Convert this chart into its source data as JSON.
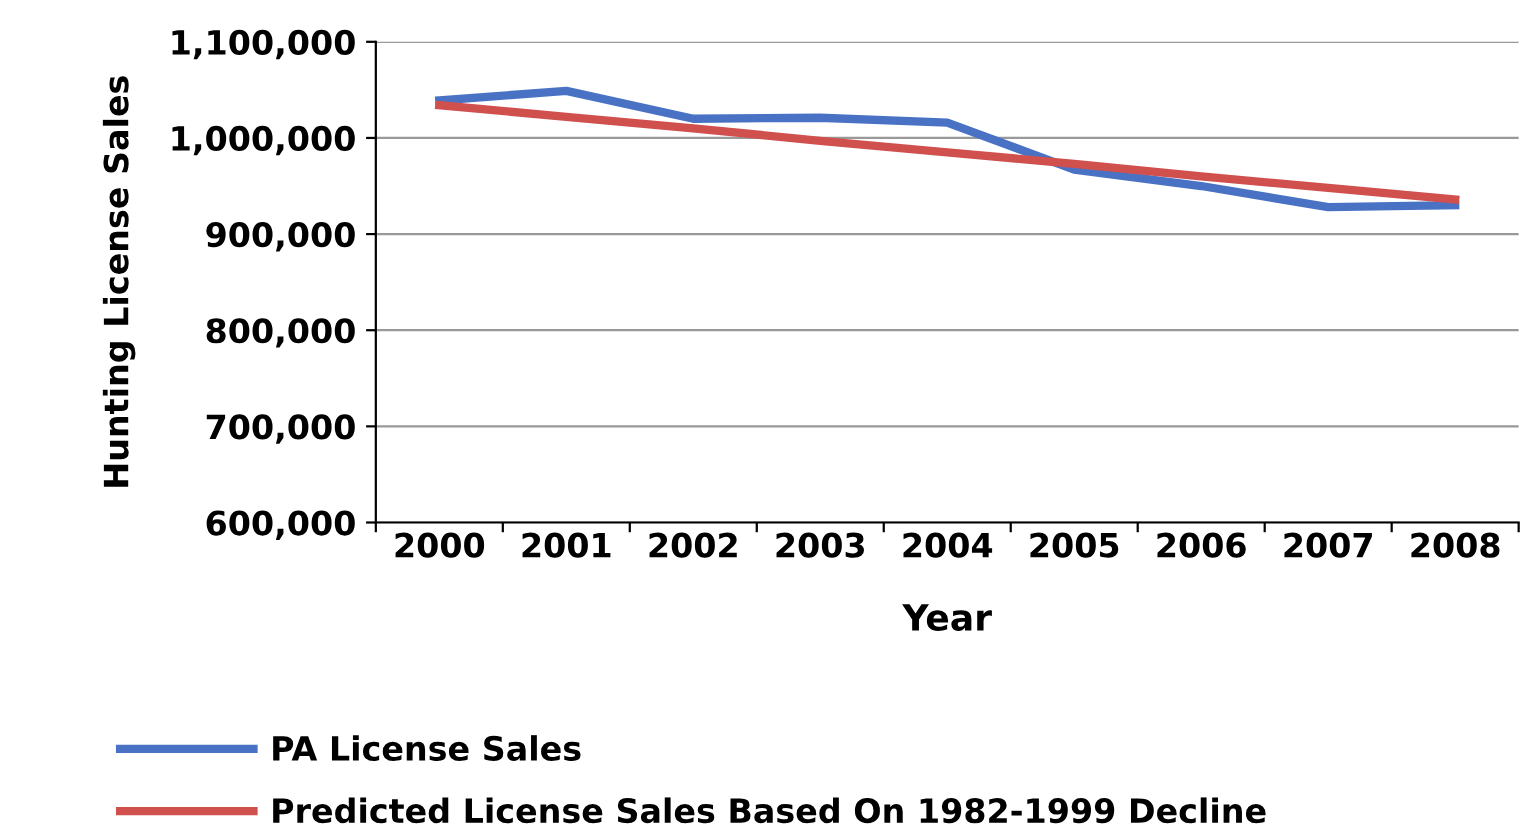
{
  "chart_data": {
    "type": "line",
    "xlabel": "Year",
    "ylabel": "Hunting License Sales",
    "categories": [
      "2000",
      "2001",
      "2002",
      "2003",
      "2004",
      "2005",
      "2006",
      "2007",
      "2008"
    ],
    "series": [
      {
        "name": "PA License Sales",
        "color": "#4a72c4",
        "values": [
          1039000,
          1049000,
          1020000,
          1021000,
          1016000,
          967000,
          950000,
          928000,
          930000
        ]
      },
      {
        "name": "Predicted License Sales Based On 1982-1999 Decline",
        "color": "#d0504e",
        "values": [
          1034000,
          1022000,
          1010000,
          997000,
          985000,
          973000,
          960000,
          948000,
          936000
        ]
      }
    ],
    "ylim": [
      600000,
      1100000
    ],
    "yticks": [
      {
        "value": 600000,
        "label": "600,000"
      },
      {
        "value": 700000,
        "label": "700,000"
      },
      {
        "value": 800000,
        "label": "800,000"
      },
      {
        "value": 900000,
        "label": "900,000"
      },
      {
        "value": 1000000,
        "label": "1,000,000"
      },
      {
        "value": 1100000,
        "label": "1,100,000"
      }
    ],
    "grid": "y",
    "legend": "bottom",
    "marker": "none",
    "line_style": "solid"
  }
}
